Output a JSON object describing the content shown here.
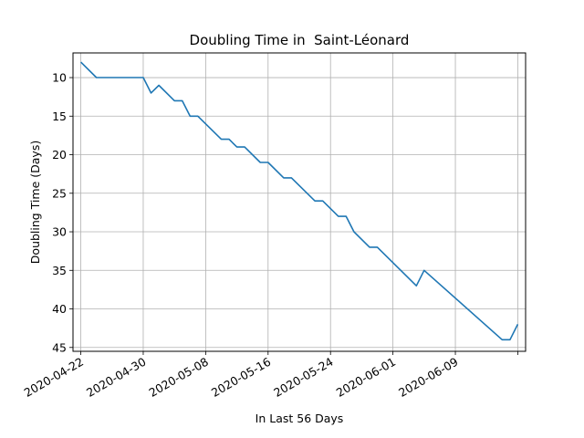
{
  "chart_data": {
    "type": "line",
    "title": "Doubling Time in  Saint-Léonard",
    "xlabel": "In Last 56 Days",
    "ylabel": "Doubling Time (Days)",
    "x_type": "date",
    "x_ticks": [
      "2020-04-22",
      "2020-04-30",
      "2020-05-08",
      "2020-05-16",
      "2020-05-24",
      "2020-06-01",
      "2020-06-09",
      ""
    ],
    "x_tick_dates": [
      "2020-04-22",
      "2020-04-30",
      "2020-05-08",
      "2020-05-16",
      "2020-05-24",
      "2020-06-01",
      "2020-06-09",
      "2020-06-17"
    ],
    "xlim": [
      "2020-04-21",
      "2020-06-18"
    ],
    "y_ticks": [
      10,
      15,
      20,
      25,
      30,
      35,
      40,
      45
    ],
    "ylim": [
      45.5,
      6.8
    ],
    "y_inverted": true,
    "grid": true,
    "series": [
      {
        "color": "#1f77b4",
        "x": [
          "2020-04-22",
          "2020-04-24",
          "2020-04-30",
          "2020-05-01",
          "2020-05-02",
          "2020-05-04",
          "2020-05-05",
          "2020-05-06",
          "2020-05-07",
          "2020-05-10",
          "2020-05-11",
          "2020-05-12",
          "2020-05-13",
          "2020-05-15",
          "2020-05-16",
          "2020-05-18",
          "2020-05-19",
          "2020-05-22",
          "2020-05-23",
          "2020-05-25",
          "2020-05-26",
          "2020-05-27",
          "2020-05-29",
          "2020-05-30",
          "2020-06-04",
          "2020-06-05",
          "2020-06-15",
          "2020-06-16",
          "2020-06-17"
        ],
        "y": [
          8,
          10,
          10,
          12,
          11,
          13,
          13,
          15,
          15,
          18,
          18,
          19,
          19,
          21,
          21,
          23,
          23,
          26,
          26,
          28,
          28,
          30,
          32,
          32,
          37,
          35,
          44,
          44,
          42
        ]
      }
    ]
  }
}
